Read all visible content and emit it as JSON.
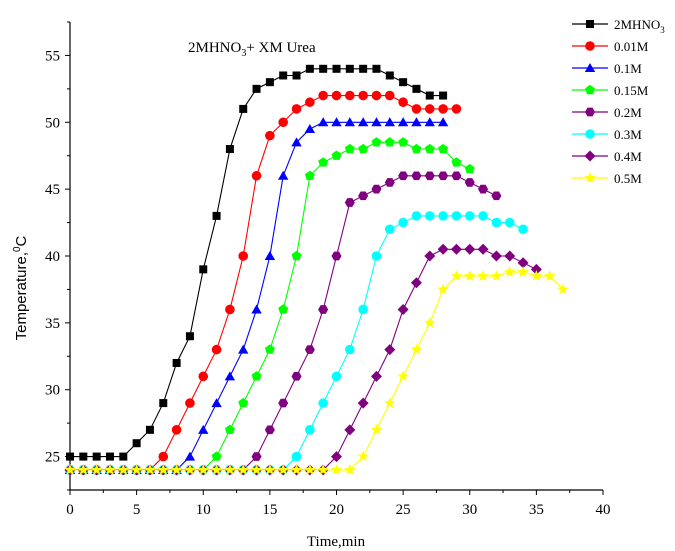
{
  "chart_data": {
    "type": "line",
    "title": "2MHNO3+ XM Urea",
    "title_parts": {
      "a": "2MHNO",
      "sub": "3",
      "b": "+ XM Urea"
    },
    "xlabel": "Time,min",
    "ylabel": "Temperature,0C",
    "ylabel_parts": {
      "a": "Temperature,",
      "sup": "0",
      "b": "C"
    },
    "xlim": [
      0,
      40
    ],
    "ylim": [
      22.5,
      57.5
    ],
    "xticks": [
      0,
      5,
      10,
      15,
      20,
      25,
      30,
      35,
      40
    ],
    "yticks": [
      25,
      30,
      35,
      40,
      45,
      50,
      55
    ],
    "grid": false,
    "legend_position": "top-right",
    "series": [
      {
        "name": "2MHNO3",
        "name_parts": {
          "a": "2MHNO",
          "sub": "3"
        },
        "color": "#000000",
        "marker": "square",
        "x": [
          0,
          1,
          2,
          3,
          4,
          5,
          6,
          7,
          8,
          9,
          10,
          11,
          12,
          13,
          14,
          15,
          16,
          17,
          18,
          19,
          20,
          21,
          22,
          23,
          24,
          25,
          26,
          27,
          28
        ],
        "y": [
          25,
          25,
          25,
          25,
          25,
          26,
          27,
          29,
          32,
          34,
          39,
          43,
          48,
          51,
          52.5,
          53,
          53.5,
          53.5,
          54,
          54,
          54,
          54,
          54,
          54,
          53.5,
          53,
          52.5,
          52,
          52
        ]
      },
      {
        "name": "0.01M",
        "color": "#ff0000",
        "marker": "circle",
        "x": [
          0,
          1,
          2,
          3,
          4,
          5,
          6,
          7,
          8,
          9,
          10,
          11,
          12,
          13,
          14,
          15,
          16,
          17,
          18,
          19,
          20,
          21,
          22,
          23,
          24,
          25,
          26,
          27,
          28,
          29
        ],
        "y": [
          24,
          24,
          24,
          24,
          24,
          24,
          24,
          25,
          27,
          29,
          31,
          33,
          36,
          40,
          46,
          49,
          50,
          51,
          51.5,
          52,
          52,
          52,
          52,
          52,
          52,
          51.5,
          51,
          51,
          51,
          51
        ]
      },
      {
        "name": "0.1M",
        "color": "#0000ff",
        "marker": "triangle",
        "x": [
          0,
          1,
          2,
          3,
          4,
          5,
          6,
          7,
          8,
          9,
          10,
          11,
          12,
          13,
          14,
          15,
          16,
          17,
          18,
          19,
          20,
          21,
          22,
          23,
          24,
          25,
          26,
          27,
          28
        ],
        "y": [
          24,
          24,
          24,
          24,
          24,
          24,
          24,
          24,
          24,
          25,
          27,
          29,
          31,
          33,
          36,
          40,
          46,
          48.5,
          49.5,
          50,
          50,
          50,
          50,
          50,
          50,
          50,
          50,
          50,
          50
        ]
      },
      {
        "name": "0.15M",
        "color": "#00ff00",
        "marker": "pentagon",
        "x": [
          0,
          1,
          2,
          3,
          4,
          5,
          6,
          7,
          8,
          9,
          10,
          11,
          12,
          13,
          14,
          15,
          16,
          17,
          18,
          19,
          20,
          21,
          22,
          23,
          24,
          25,
          26,
          27,
          28,
          29,
          30
        ],
        "y": [
          24,
          24,
          24,
          24,
          24,
          24,
          24,
          24,
          24,
          24,
          24,
          25,
          27,
          29,
          31,
          33,
          36,
          40,
          46,
          47,
          47.5,
          48,
          48,
          48.5,
          48.5,
          48.5,
          48,
          48,
          48,
          47,
          46.5
        ]
      },
      {
        "name": "0.2M",
        "color": "#800080",
        "marker": "hexagon",
        "x": [
          0,
          1,
          2,
          3,
          4,
          5,
          6,
          7,
          8,
          9,
          10,
          11,
          12,
          13,
          14,
          15,
          16,
          17,
          18,
          19,
          20,
          21,
          22,
          23,
          24,
          25,
          26,
          27,
          28,
          29,
          30,
          31,
          32
        ],
        "y": [
          24,
          24,
          24,
          24,
          24,
          24,
          24,
          24,
          24,
          24,
          24,
          24,
          24,
          24,
          25,
          27,
          29,
          31,
          33,
          36,
          40,
          44,
          44.5,
          45,
          45.5,
          46,
          46,
          46,
          46,
          46,
          45.5,
          45,
          44.5
        ]
      },
      {
        "name": "0.3M",
        "color": "#00ffff",
        "marker": "circle",
        "x": [
          0,
          1,
          2,
          3,
          4,
          5,
          6,
          7,
          8,
          9,
          10,
          11,
          12,
          13,
          14,
          15,
          16,
          17,
          18,
          19,
          20,
          21,
          22,
          23,
          24,
          25,
          26,
          27,
          28,
          29,
          30,
          31,
          32,
          33,
          34
        ],
        "y": [
          24,
          24,
          24,
          24,
          24,
          24,
          24,
          24,
          24,
          24,
          24,
          24,
          24,
          24,
          24,
          24,
          24,
          25,
          27,
          29,
          31,
          33,
          36,
          40,
          42,
          42.5,
          43,
          43,
          43,
          43,
          43,
          43,
          42.5,
          42.5,
          42
        ]
      },
      {
        "name": "0.4M",
        "color": "#800080",
        "marker": "diamond",
        "x": [
          0,
          1,
          2,
          3,
          4,
          5,
          6,
          7,
          8,
          9,
          10,
          11,
          12,
          13,
          14,
          15,
          16,
          17,
          18,
          19,
          20,
          21,
          22,
          23,
          24,
          25,
          26,
          27,
          28,
          29,
          30,
          31,
          32,
          33,
          34,
          35
        ],
        "y": [
          24,
          24,
          24,
          24,
          24,
          24,
          24,
          24,
          24,
          24,
          24,
          24,
          24,
          24,
          24,
          24,
          24,
          24,
          24,
          24,
          25,
          27,
          29,
          31,
          33,
          36,
          38,
          40,
          40.5,
          40.5,
          40.5,
          40.5,
          40,
          40,
          39.5,
          39
        ]
      },
      {
        "name": "0.5M",
        "color": "#ffff00",
        "marker": "star",
        "x": [
          0,
          1,
          2,
          3,
          4,
          5,
          6,
          7,
          8,
          9,
          10,
          11,
          12,
          13,
          14,
          15,
          16,
          17,
          18,
          19,
          20,
          21,
          22,
          23,
          24,
          25,
          26,
          27,
          28,
          29,
          30,
          31,
          32,
          33,
          34,
          35,
          36,
          37
        ],
        "y": [
          24,
          24,
          24,
          24,
          24,
          24,
          24,
          24,
          24,
          24,
          24,
          24,
          24,
          24,
          24,
          24,
          24,
          24,
          24,
          24,
          24,
          24,
          25,
          27,
          29,
          31,
          33,
          35,
          37.5,
          38.5,
          38.5,
          38.5,
          38.5,
          38.8,
          38.8,
          38.5,
          38.5,
          37.5
        ]
      }
    ]
  }
}
